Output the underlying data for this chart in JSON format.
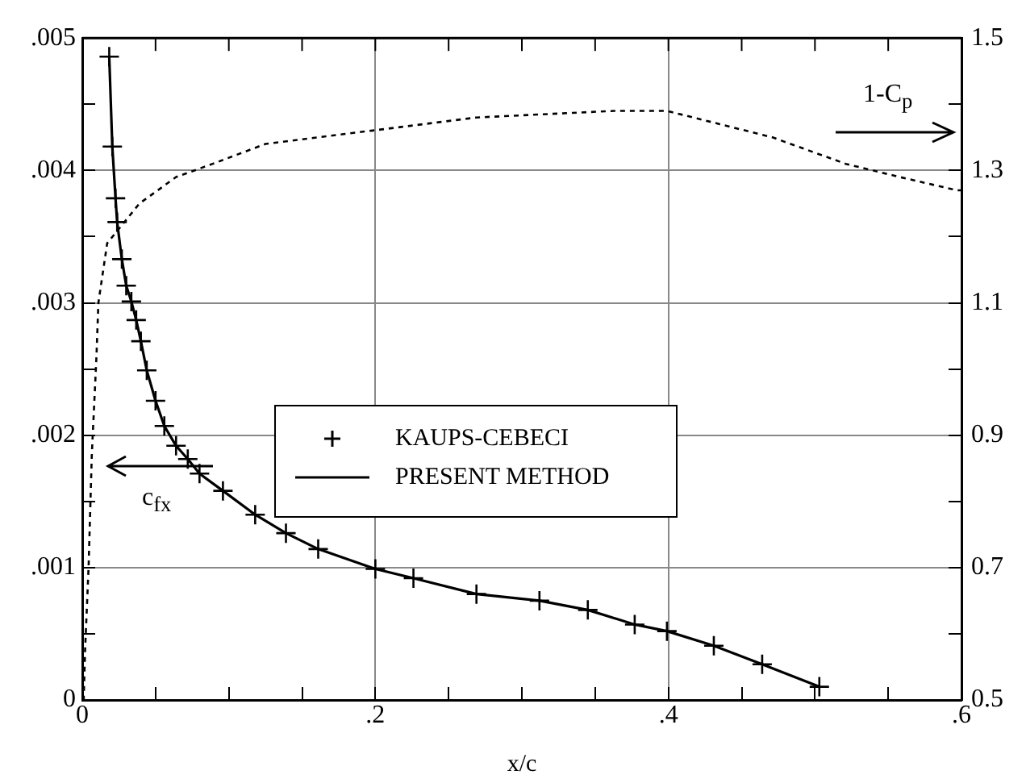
{
  "chart_data": {
    "type": "line",
    "xlabel": "x/c",
    "legend": "center",
    "annotations": [
      "c$_{fx}$",
      "1-C$_{p}$"
    ],
    "x": [
      0.0184,
      0.0205,
      0.0227,
      0.0238,
      0.027,
      0.03,
      0.0335,
      0.0368,
      0.04,
      0.044,
      0.05,
      0.056,
      0.064,
      0.072,
      0.08,
      0.096,
      0.118,
      0.139,
      0.161,
      0.2,
      0.226,
      0.269,
      0.312,
      0.345,
      0.377,
      0.399,
      0.431,
      0.464,
      0.503
    ],
    "series": [
      {
        "name": "KAUPS-CEBECI",
        "type": "scatter",
        "marker": "cross",
        "color": "#000000",
        "values": [
          0.00486,
          0.00418,
          0.00379,
          0.00361,
          0.00333,
          0.00313,
          0.00301,
          0.00287,
          0.00271,
          0.00249,
          0.00226,
          0.00207,
          0.00192,
          0.00182,
          0.00171,
          0.00158,
          0.0014,
          0.00126,
          0.00114,
          0.00099,
          0.00092,
          0.0008,
          0.00075,
          0.00068,
          0.00057,
          0.00052,
          0.00041,
          0.00027,
          0.0001
        ]
      },
      {
        "name": "PRESENT METHOD",
        "type": "line",
        "line_style": "solid",
        "color": "#000000",
        "values": [
          0.00486,
          0.00418,
          0.00379,
          0.00361,
          0.00333,
          0.00313,
          0.00301,
          0.00287,
          0.00271,
          0.00249,
          0.00226,
          0.00207,
          0.00192,
          0.00182,
          0.00171,
          0.00158,
          0.0014,
          0.00126,
          0.00114,
          0.00099,
          0.00092,
          0.0008,
          0.00075,
          0.00068,
          0.00057,
          0.00052,
          0.00041,
          0.00027,
          0.0001
        ]
      },
      {
        "type": "line",
        "axis": "y2",
        "line_style": "dashed",
        "color": "#000000",
        "x": [
          0,
          0.001,
          0.002,
          0.0043,
          0.0065,
          0.0097,
          0.011,
          0.017,
          0.039,
          0.064,
          0.089,
          0.125,
          0.197,
          0.269,
          0.363,
          0.399,
          0.435,
          0.471,
          0.521,
          0.558,
          0.597,
          0.6
        ],
        "values": [
          0.5,
          0.502,
          0.58,
          0.7,
          0.87,
          1.02,
          1.1,
          1.19,
          1.25,
          1.29,
          1.31,
          1.34,
          1.36,
          1.38,
          1.39,
          1.39,
          1.37,
          1.35,
          1.31,
          1.29,
          1.27,
          1.27
        ]
      }
    ],
    "xlim": [
      0,
      0.6
    ],
    "xticks": [
      0,
      {
        "value": 0.05,
        "label": null
      },
      {
        "value": 0.1,
        "label": null
      },
      {
        "value": 0.15,
        "label": null
      },
      {
        "value": 0.2,
        "label": ".2"
      },
      {
        "value": 0.25,
        "label": null
      },
      {
        "value": 0.3,
        "label": null
      },
      {
        "value": 0.35,
        "label": null
      },
      {
        "value": 0.4,
        "label": ".4"
      },
      {
        "value": 0.45,
        "label": null
      },
      {
        "value": 0.5,
        "label": null
      },
      {
        "value": 0.55,
        "label": null
      },
      {
        "value": 0.6,
        "label": ".6"
      }
    ],
    "ylim": [
      0,
      0.005
    ],
    "yticks": [
      0,
      {
        "value": 0.0005,
        "label": null
      },
      {
        "value": 0.001,
        "label": ".001"
      },
      {
        "value": 0.0015,
        "label": null
      },
      {
        "value": 0.002,
        "label": ".002"
      },
      {
        "value": 0.0025,
        "label": null
      },
      {
        "value": 0.003,
        "label": ".003"
      },
      {
        "value": 0.0035,
        "label": null
      },
      {
        "value": 0.004,
        "label": ".004"
      },
      {
        "value": 0.0045,
        "label": null
      },
      {
        "value": 0.005,
        "label": ".005"
      }
    ],
    "y2lim": [
      0.5,
      1.5
    ],
    "y2ticks": [
      0.5,
      {
        "value": 0.6,
        "label": null
      },
      0.7,
      {
        "value": 0.8,
        "label": null
      },
      0.9,
      {
        "value": 1.0,
        "label": null
      },
      1.1,
      {
        "value": 1.2,
        "label": null
      },
      1.3,
      {
        "value": 1.4,
        "label": null
      },
      1.5
    ],
    "grid": true
  }
}
